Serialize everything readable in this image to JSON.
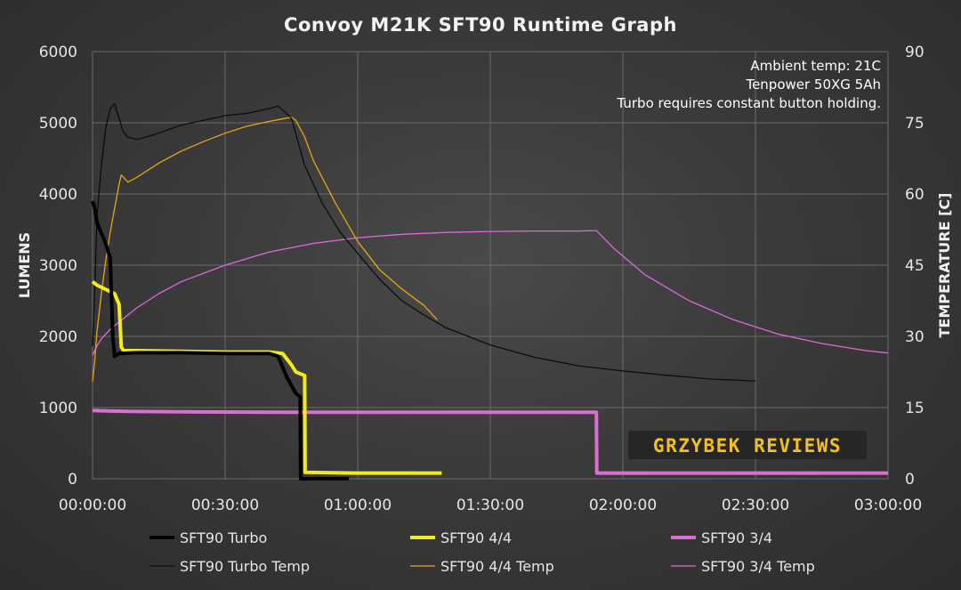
{
  "chart_data": {
    "type": "line",
    "title": "Convoy M21K SFT90 Runtime Graph",
    "ylabel": "LUMENS",
    "y2label": "TEMPERATURE [C]",
    "xlabel": "",
    "xlim": [
      0,
      180
    ],
    "ylim": [
      0,
      6000
    ],
    "y2lim": [
      0,
      90
    ],
    "x_ticks": [
      "00:00:00",
      "00:30:00",
      "01:00:00",
      "01:30:00",
      "02:00:00",
      "02:30:00",
      "03:00:00"
    ],
    "y_ticks": [
      "0",
      "1000",
      "2000",
      "3000",
      "4000",
      "5000",
      "6000"
    ],
    "y2_ticks": [
      "0",
      "15",
      "30",
      "45",
      "60",
      "75",
      "90"
    ],
    "grid": true,
    "x_unit": "minutes",
    "annotations": [
      "Ambient temp: 21C",
      "Tenpower 50XG 5Ah",
      "Turbo requires constant button holding."
    ],
    "watermark": "GRZYBEK REVIEWS",
    "series": [
      {
        "name": "SFT90 Turbo",
        "axis": "left",
        "color": "#000000",
        "width": 4,
        "x": [
          0,
          0.5,
          1,
          2,
          3,
          4,
          4.6,
          5,
          6,
          10,
          20,
          30,
          40,
          42,
          44,
          46,
          47,
          47.1,
          50,
          55,
          58
        ],
        "y": [
          3900,
          3800,
          3600,
          3450,
          3300,
          3100,
          2000,
          1720,
          1760,
          1770,
          1770,
          1760,
          1760,
          1720,
          1420,
          1200,
          1150,
          0,
          0,
          0,
          0
        ]
      },
      {
        "name": "SFT90 4/4",
        "axis": "left",
        "color": "#f2ea1c",
        "width": 4,
        "x": [
          0,
          1,
          5,
          6,
          6.5,
          7,
          10,
          20,
          30,
          40,
          43,
          45,
          46,
          48,
          48.1,
          60,
          70,
          79
        ],
        "y": [
          2770,
          2720,
          2600,
          2450,
          1850,
          1800,
          1800,
          1790,
          1780,
          1780,
          1760,
          1600,
          1500,
          1450,
          90,
          80,
          80,
          80
        ]
      },
      {
        "name": "SFT90 3/4",
        "axis": "left",
        "color": "#d96fd0",
        "width": 4,
        "x": [
          0,
          5,
          10,
          20,
          30,
          40,
          60,
          80,
          100,
          113,
          114,
          114.1,
          130,
          150,
          170,
          180
        ],
        "y": [
          960,
          950,
          945,
          940,
          938,
          935,
          935,
          935,
          935,
          935,
          935,
          80,
          80,
          80,
          80,
          80
        ]
      },
      {
        "name": "SFT90 Turbo Temp",
        "axis": "right",
        "color": "#0c0c0c",
        "width": 1.3,
        "x": [
          0,
          0.5,
          1,
          2,
          3,
          4,
          5,
          6,
          7,
          8,
          10,
          14,
          20,
          25,
          30,
          35,
          40,
          42,
          45,
          48,
          52,
          56,
          60,
          65,
          70,
          75,
          80,
          90,
          100,
          110,
          120,
          130,
          140,
          150
        ],
        "y": [
          28,
          40,
          55,
          66,
          74,
          78,
          79,
          76,
          73,
          72,
          71.5,
          72.5,
          74.5,
          75.5,
          76.5,
          77,
          78,
          78.5,
          76,
          66,
          58,
          52,
          47.5,
          42,
          37.5,
          34.5,
          31.8,
          28.2,
          25.6,
          23.8,
          22.7,
          21.8,
          21,
          20.6
        ]
      },
      {
        "name": "SFT90 4/4 Temp",
        "axis": "right",
        "color": "#e8a317",
        "width": 1.3,
        "x": [
          0,
          0.5,
          1,
          2,
          3,
          4,
          5,
          6,
          6.5,
          7,
          8,
          10,
          15,
          20,
          25,
          30,
          35,
          40,
          44,
          45,
          46,
          48,
          50,
          55,
          60,
          65,
          70,
          75,
          78
        ],
        "y": [
          20.5,
          25,
          31,
          39,
          46,
          52,
          57,
          62,
          64,
          63.5,
          62.5,
          63.5,
          66.5,
          69,
          71,
          72.8,
          74.3,
          75.3,
          76,
          76.2,
          75.5,
          72,
          67,
          58,
          50,
          44,
          40,
          36.5,
          33.5
        ]
      },
      {
        "name": "SFT90 3/4 Temp",
        "axis": "right",
        "color": "#e067dc",
        "width": 1.3,
        "x": [
          0,
          1,
          2,
          4,
          6,
          10,
          15,
          20,
          30,
          40,
          50,
          60,
          70,
          80,
          90,
          100,
          110,
          114,
          118,
          125,
          135,
          145,
          155,
          165,
          175,
          180
        ],
        "y": [
          26,
          28,
          29.5,
          31.5,
          33,
          36,
          39,
          41.5,
          45,
          47.8,
          49.6,
          50.8,
          51.5,
          51.9,
          52.1,
          52.2,
          52.2,
          52.3,
          48.5,
          43,
          37.5,
          33.5,
          30.5,
          28.5,
          27,
          26.5
        ]
      }
    ]
  }
}
